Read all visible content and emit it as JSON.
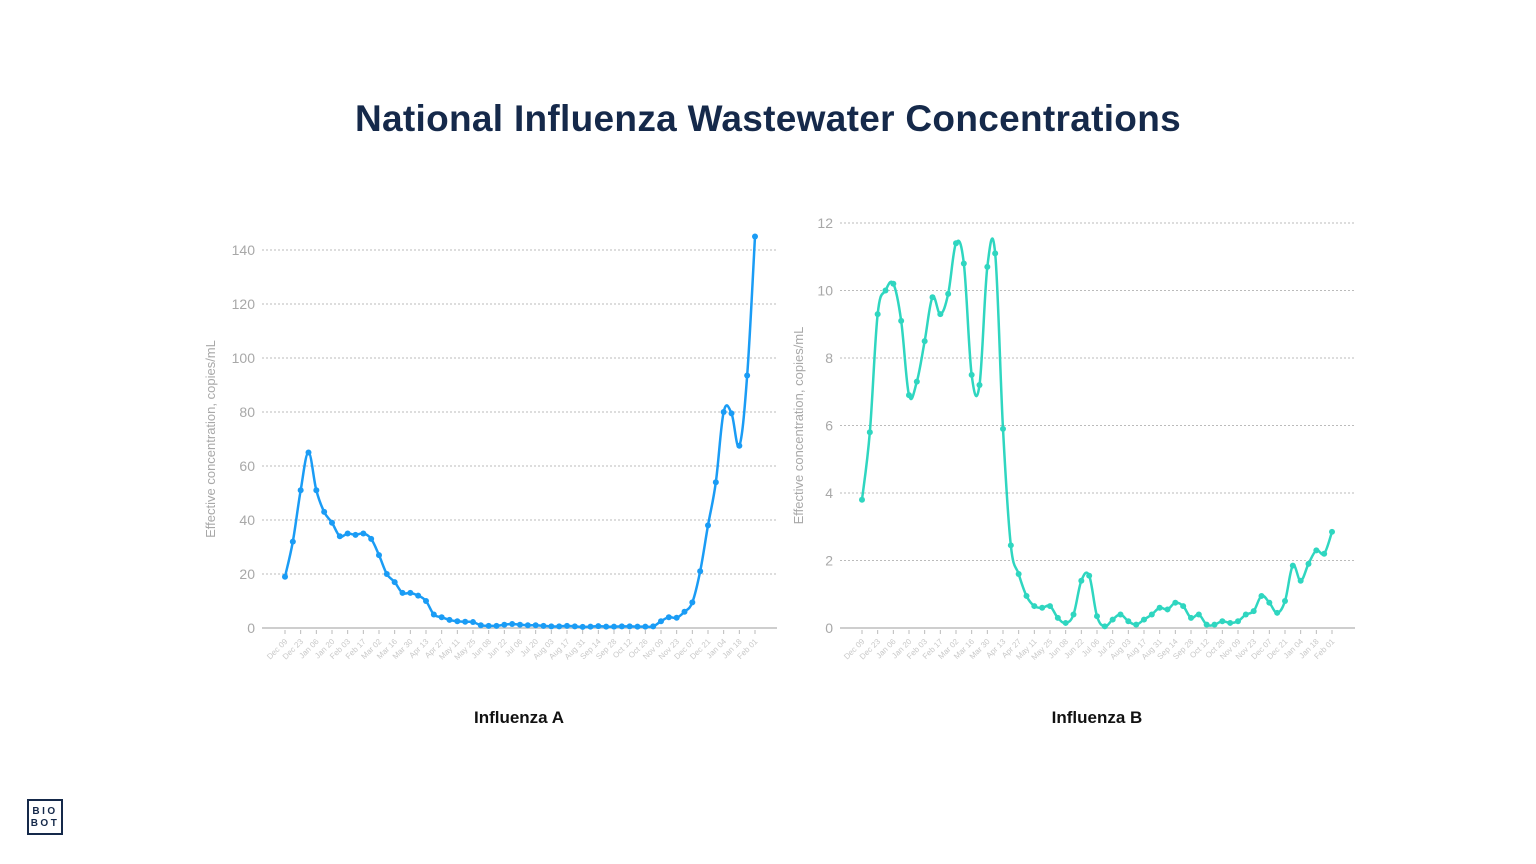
{
  "title": "National Influenza Wastewater Concentrations",
  "logo": {
    "line1": "BIO",
    "line2": "BOT"
  },
  "chart_data": [
    {
      "type": "line",
      "subtitle": "Influenza A",
      "ylabel": "Effective concentration, copies/mL",
      "xlabel": "",
      "color": "#1a9cf5",
      "ylim": [
        0,
        140
      ],
      "yticks": [
        0,
        20,
        40,
        60,
        80,
        100,
        120,
        140
      ],
      "grid": true,
      "smooth": true,
      "xtick_labels": [
        "Dec 09",
        "Dec 23",
        "Jan 06",
        "Jan 20",
        "Feb 03",
        "Feb 17",
        "Mar 02",
        "Mar 16",
        "Mar 30",
        "Apr 13",
        "Apr 27",
        "May 11",
        "May 25",
        "Jun 08",
        "Jun 22",
        "Jul 06",
        "Jul 20",
        "Aug 03",
        "Aug 17",
        "Aug 31",
        "Sep 14",
        "Sep 28",
        "Oct 12",
        "Oct 26",
        "Nov 09",
        "Nov 23",
        "Dec 07",
        "Dec 21",
        "Jan 04",
        "Jan 18",
        "Feb 01"
      ],
      "x": [
        "Dec 09",
        "Dec 16",
        "Dec 23",
        "Dec 30",
        "Jan 06",
        "Jan 13",
        "Jan 20",
        "Jan 27",
        "Feb 03",
        "Feb 10",
        "Feb 17",
        "Feb 24",
        "Mar 02",
        "Mar 09",
        "Mar 16",
        "Mar 23",
        "Mar 30",
        "Apr 06",
        "Apr 13",
        "Apr 20",
        "Apr 27",
        "May 04",
        "May 11",
        "May 18",
        "May 25",
        "Jun 01",
        "Jun 08",
        "Jun 15",
        "Jun 22",
        "Jun 29",
        "Jul 06",
        "Jul 13",
        "Jul 20",
        "Jul 27",
        "Aug 03",
        "Aug 10",
        "Aug 17",
        "Aug 24",
        "Aug 31",
        "Sep 07",
        "Sep 14",
        "Sep 21",
        "Sep 28",
        "Oct 05",
        "Oct 12",
        "Oct 19",
        "Oct 26",
        "Nov 02",
        "Nov 09",
        "Nov 16",
        "Nov 23",
        "Nov 30",
        "Dec 07",
        "Dec 14",
        "Dec 21",
        "Dec 28",
        "Jan 04",
        "Jan 11",
        "Jan 18",
        "Jan 25",
        "Feb 01"
      ],
      "values": [
        19,
        32,
        51,
        65,
        51,
        43,
        39,
        34,
        35,
        34.5,
        35,
        33,
        27,
        20,
        17,
        13,
        13,
        12,
        10,
        5,
        4,
        3,
        2.5,
        2.3,
        2.2,
        1,
        0.8,
        0.8,
        1.2,
        1.5,
        1.2,
        1,
        1,
        0.8,
        0.6,
        0.6,
        0.8,
        0.6,
        0.4,
        0.5,
        0.7,
        0.5,
        0.5,
        0.6,
        0.6,
        0.5,
        0.5,
        0.6,
        2.5,
        4,
        3.8,
        6,
        9.5,
        21,
        38,
        54,
        80,
        79.5,
        67.5,
        93.5,
        145
      ]
    },
    {
      "type": "line",
      "subtitle": "Influenza B",
      "ylabel": "Effective concentration, copies/mL",
      "xlabel": "",
      "color": "#2fd6c0",
      "ylim": [
        0,
        12
      ],
      "yticks": [
        0,
        2,
        4,
        6,
        8,
        10,
        12
      ],
      "grid": true,
      "smooth": true,
      "xtick_labels": [
        "Dec 09",
        "Dec 23",
        "Jan 06",
        "Jan 20",
        "Feb 03",
        "Feb 17",
        "Mar 02",
        "Mar 16",
        "Mar 30",
        "Apr 13",
        "Apr 27",
        "May 11",
        "May 25",
        "Jun 08",
        "Jun 22",
        "Jul 06",
        "Jul 20",
        "Aug 03",
        "Aug 17",
        "Aug 31",
        "Sep 14",
        "Sep 28",
        "Oct 12",
        "Oct 26",
        "Nov 09",
        "Nov 23",
        "Dec 07",
        "Dec 21",
        "Jan 04",
        "Jan 18",
        "Feb 01"
      ],
      "x": [
        "Dec 09",
        "Dec 16",
        "Dec 23",
        "Dec 30",
        "Jan 06",
        "Jan 13",
        "Jan 20",
        "Jan 27",
        "Feb 03",
        "Feb 10",
        "Feb 17",
        "Feb 24",
        "Mar 02",
        "Mar 09",
        "Mar 16",
        "Mar 23",
        "Mar 30",
        "Apr 06",
        "Apr 13",
        "Apr 20",
        "Apr 27",
        "May 04",
        "May 11",
        "May 18",
        "May 25",
        "Jun 01",
        "Jun 08",
        "Jun 15",
        "Jun 22",
        "Jun 29",
        "Jul 06",
        "Jul 13",
        "Jul 20",
        "Jul 27",
        "Aug 03",
        "Aug 10",
        "Aug 17",
        "Aug 24",
        "Aug 31",
        "Sep 07",
        "Sep 14",
        "Sep 21",
        "Sep 28",
        "Oct 05",
        "Oct 12",
        "Oct 19",
        "Oct 26",
        "Nov 02",
        "Nov 09",
        "Nov 16",
        "Nov 23",
        "Nov 30",
        "Dec 07",
        "Dec 14",
        "Dec 21",
        "Dec 28",
        "Jan 04",
        "Jan 11",
        "Jan 18",
        "Jan 25",
        "Feb 01"
      ],
      "values": [
        3.8,
        5.8,
        9.3,
        10.0,
        10.2,
        9.1,
        6.9,
        7.3,
        8.5,
        9.8,
        9.3,
        9.9,
        11.4,
        10.8,
        7.5,
        7.2,
        10.7,
        11.1,
        5.9,
        2.45,
        1.6,
        0.95,
        0.65,
        0.6,
        0.65,
        0.3,
        0.15,
        0.4,
        1.4,
        1.55,
        0.35,
        0.05,
        0.25,
        0.4,
        0.2,
        0.1,
        0.25,
        0.4,
        0.6,
        0.55,
        0.75,
        0.65,
        0.3,
        0.4,
        0.1,
        0.1,
        0.2,
        0.15,
        0.2,
        0.4,
        0.5,
        0.95,
        0.75,
        0.45,
        0.8,
        1.85,
        1.4,
        1.9,
        2.3,
        2.2,
        2.85
      ]
    }
  ]
}
